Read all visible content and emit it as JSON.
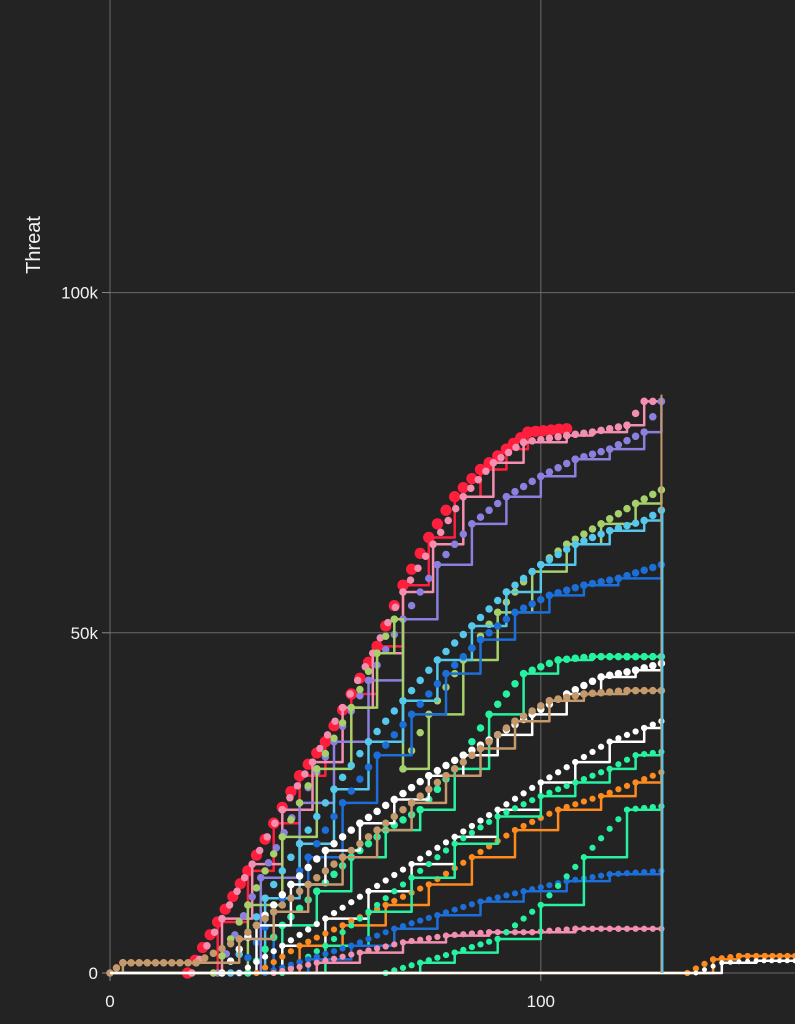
{
  "chart_data": {
    "type": "line",
    "title": "",
    "xlabel": "",
    "ylabel": "Threat",
    "xlim": [
      0,
      159
    ],
    "ylim": [
      0,
      143000
    ],
    "grid": true,
    "legend": "none",
    "x_ticks": [
      {
        "value": 0,
        "label": "0"
      },
      {
        "value": 100,
        "label": "100"
      }
    ],
    "y_ticks": [
      {
        "value": 0,
        "label": "0"
      },
      {
        "value": 50000,
        "label": "50k"
      },
      {
        "value": 100000,
        "label": "100k"
      }
    ],
    "series": [
      {
        "color": "#ff1f3d",
        "marker_size": 9,
        "points": [
          [
            0,
            0
          ],
          [
            18,
            0
          ],
          [
            25,
            7500
          ],
          [
            32,
            15000
          ],
          [
            38,
            22000
          ],
          [
            44,
            29000
          ],
          [
            50,
            34000
          ],
          [
            56,
            41000
          ],
          [
            62,
            48000
          ],
          [
            68,
            57000
          ],
          [
            74,
            64000
          ],
          [
            80,
            70000
          ],
          [
            86,
            74000
          ],
          [
            92,
            77000
          ],
          [
            97,
            79500
          ],
          [
            106,
            80000
          ]
        ]
      },
      {
        "color": "#f48fb1",
        "marker_size": 6,
        "points": [
          [
            0,
            0
          ],
          [
            19,
            0
          ],
          [
            26,
            8000
          ],
          [
            33,
            16000
          ],
          [
            40,
            24000
          ],
          [
            47,
            31000
          ],
          [
            54,
            39000
          ],
          [
            61,
            47000
          ],
          [
            68,
            56000
          ],
          [
            75,
            63000
          ],
          [
            82,
            70000
          ],
          [
            89,
            75000
          ],
          [
            96,
            78000
          ],
          [
            106,
            79000
          ],
          [
            112,
            79500
          ],
          [
            120,
            80500
          ],
          [
            124,
            84000
          ],
          [
            128,
            84000
          ]
        ]
      },
      {
        "color": "#8b80e0",
        "marker_size": 6,
        "points": [
          [
            0,
            0
          ],
          [
            25,
            0
          ],
          [
            35,
            14000
          ],
          [
            44,
            25000
          ],
          [
            52,
            34000
          ],
          [
            60,
            43000
          ],
          [
            68,
            52000
          ],
          [
            76,
            60000
          ],
          [
            84,
            66000
          ],
          [
            92,
            70000
          ],
          [
            100,
            73000
          ],
          [
            108,
            75500
          ],
          [
            116,
            77000
          ],
          [
            124,
            79500
          ],
          [
            128,
            84000
          ]
        ]
      },
      {
        "color": "#a5d06a",
        "marker_size": 6,
        "points": [
          [
            0,
            0
          ],
          [
            24,
            0
          ],
          [
            32,
            10000
          ],
          [
            40,
            20000
          ],
          [
            48,
            30000
          ],
          [
            56,
            39000
          ],
          [
            62,
            47000
          ],
          [
            66,
            52000
          ],
          [
            68,
            30000
          ],
          [
            74,
            38000
          ],
          [
            82,
            46000
          ],
          [
            90,
            53000
          ],
          [
            98,
            59000
          ],
          [
            106,
            63000
          ],
          [
            114,
            66000
          ],
          [
            122,
            69000
          ],
          [
            128,
            71000
          ]
        ]
      },
      {
        "color": "#55c8ec",
        "marker_size": 6,
        "points": [
          [
            0,
            0
          ],
          [
            28,
            0
          ],
          [
            36,
            11000
          ],
          [
            44,
            19000
          ],
          [
            52,
            27000
          ],
          [
            60,
            34000
          ],
          [
            68,
            40000
          ],
          [
            76,
            46000
          ],
          [
            84,
            51000
          ],
          [
            92,
            56000
          ],
          [
            100,
            60000
          ],
          [
            108,
            63000
          ],
          [
            116,
            65000
          ],
          [
            124,
            66500
          ],
          [
            128,
            68000
          ]
        ]
      },
      {
        "color": "#1c6ed8",
        "marker_size": 6,
        "points": [
          [
            0,
            0
          ],
          [
            30,
            0
          ],
          [
            38,
            9000
          ],
          [
            46,
            17000
          ],
          [
            54,
            25000
          ],
          [
            62,
            32000
          ],
          [
            70,
            38000
          ],
          [
            78,
            44000
          ],
          [
            86,
            49000
          ],
          [
            94,
            53000
          ],
          [
            102,
            55500
          ],
          [
            110,
            57000
          ],
          [
            118,
            58000
          ],
          [
            128,
            60000
          ]
        ]
      },
      {
        "color": "#27f2a0",
        "marker_size": 6,
        "points": [
          [
            0,
            0
          ],
          [
            32,
            0
          ],
          [
            40,
            7000
          ],
          [
            48,
            12000
          ],
          [
            56,
            17000
          ],
          [
            64,
            21000
          ],
          [
            72,
            24000
          ],
          [
            80,
            30000
          ],
          [
            88,
            38000
          ],
          [
            96,
            44000
          ],
          [
            104,
            46000
          ],
          [
            112,
            46500
          ],
          [
            120,
            46500
          ],
          [
            128,
            46500
          ]
        ]
      },
      {
        "color": "#ffffff",
        "marker_size": 6,
        "points": [
          [
            0,
            0
          ],
          [
            26,
            0
          ],
          [
            34,
            7000
          ],
          [
            42,
            13000
          ],
          [
            50,
            18000
          ],
          [
            58,
            22000
          ],
          [
            66,
            25500
          ],
          [
            74,
            29000
          ],
          [
            82,
            32000
          ],
          [
            90,
            35000
          ],
          [
            98,
            38000
          ],
          [
            106,
            41000
          ],
          [
            114,
            43500
          ],
          [
            122,
            44500
          ],
          [
            128,
            45500
          ]
        ]
      },
      {
        "color": "#c49a6c",
        "marker_size": 6,
        "points": [
          [
            0,
            0
          ],
          [
            3,
            1500
          ],
          [
            20,
            1500
          ],
          [
            30,
            5000
          ],
          [
            38,
            9000
          ],
          [
            46,
            13000
          ],
          [
            54,
            17000
          ],
          [
            62,
            21000
          ],
          [
            70,
            25000
          ],
          [
            78,
            29000
          ],
          [
            86,
            33000
          ],
          [
            94,
            37000
          ],
          [
            102,
            40000
          ],
          [
            110,
            41000
          ],
          [
            120,
            41500
          ],
          [
            128,
            41500
          ]
        ]
      },
      {
        "color": "#ffffff",
        "marker_size": 5,
        "points": [
          [
            0,
            0
          ],
          [
            30,
            0
          ],
          [
            40,
            4000
          ],
          [
            50,
            8000
          ],
          [
            60,
            12000
          ],
          [
            70,
            16000
          ],
          [
            80,
            20000
          ],
          [
            90,
            24000
          ],
          [
            100,
            28000
          ],
          [
            108,
            31000
          ],
          [
            116,
            34000
          ],
          [
            124,
            36000
          ],
          [
            128,
            37000
          ]
        ]
      },
      {
        "color": "#ff8a1e",
        "marker_size": 5,
        "points": [
          [
            0,
            0
          ],
          [
            34,
            0
          ],
          [
            44,
            4000
          ],
          [
            54,
            7000
          ],
          [
            64,
            10000
          ],
          [
            74,
            13000
          ],
          [
            84,
            17000
          ],
          [
            94,
            21000
          ],
          [
            104,
            24000
          ],
          [
            114,
            26000
          ],
          [
            122,
            28000
          ],
          [
            128,
            29500
          ]
        ]
      },
      {
        "color": "#27f2a0",
        "marker_size": 5,
        "points": [
          [
            0,
            0
          ],
          [
            40,
            0
          ],
          [
            50,
            4000
          ],
          [
            60,
            9000
          ],
          [
            70,
            14000
          ],
          [
            80,
            19000
          ],
          [
            90,
            23000
          ],
          [
            100,
            26000
          ],
          [
            108,
            28000
          ],
          [
            116,
            30000
          ],
          [
            122,
            32000
          ],
          [
            128,
            32500
          ]
        ]
      },
      {
        "color": "#1c6ed8",
        "marker_size": 5,
        "points": [
          [
            0,
            0
          ],
          [
            36,
            0
          ],
          [
            46,
            2000
          ],
          [
            56,
            4000
          ],
          [
            66,
            6500
          ],
          [
            76,
            8500
          ],
          [
            86,
            10500
          ],
          [
            96,
            12000
          ],
          [
            106,
            13500
          ],
          [
            116,
            14500
          ],
          [
            128,
            15000
          ]
        ]
      },
      {
        "color": "#f48fb1",
        "marker_size": 5,
        "points": [
          [
            0,
            0
          ],
          [
            38,
            0
          ],
          [
            48,
            1500
          ],
          [
            58,
            3000
          ],
          [
            68,
            4500
          ],
          [
            78,
            5500
          ],
          [
            88,
            6000
          ],
          [
            98,
            6000
          ],
          [
            108,
            6500
          ],
          [
            118,
            6500
          ],
          [
            128,
            6500
          ]
        ]
      },
      {
        "color": "#27f2a0",
        "marker_size": 5,
        "points": [
          [
            0,
            0
          ],
          [
            64,
            0
          ],
          [
            72,
            1500
          ],
          [
            80,
            3000
          ],
          [
            90,
            5000
          ],
          [
            100,
            10000
          ],
          [
            110,
            17000
          ],
          [
            120,
            24000
          ],
          [
            128,
            24500
          ]
        ]
      },
      {
        "color": "#ff8a1e",
        "marker_size": 5,
        "points": [
          [
            0,
            0
          ],
          [
            134,
            0
          ],
          [
            140,
            2000
          ],
          [
            146,
            2500
          ],
          [
            152,
            2500
          ],
          [
            159,
            2500
          ]
        ]
      },
      {
        "color": "#ffffff",
        "marker_size": 4,
        "points": [
          [
            0,
            0
          ],
          [
            136,
            0
          ],
          [
            142,
            1500
          ],
          [
            150,
            1800
          ],
          [
            159,
            1800
          ]
        ]
      }
    ]
  }
}
